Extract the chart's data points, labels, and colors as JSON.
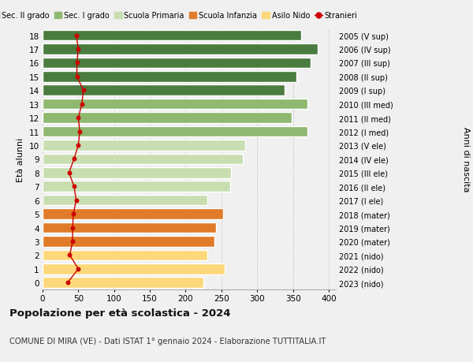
{
  "ages": [
    0,
    1,
    2,
    3,
    4,
    5,
    6,
    7,
    8,
    9,
    10,
    11,
    12,
    13,
    14,
    15,
    16,
    17,
    18
  ],
  "bar_values": [
    225,
    255,
    230,
    240,
    242,
    252,
    230,
    262,
    263,
    280,
    283,
    370,
    348,
    370,
    338,
    355,
    375,
    385,
    362
  ],
  "bar_colors": [
    "#fdd87a",
    "#fdd87a",
    "#fdd87a",
    "#e07b2a",
    "#e07b2a",
    "#e07b2a",
    "#c8deb0",
    "#c8deb0",
    "#c8deb0",
    "#c8deb0",
    "#c8deb0",
    "#8fb870",
    "#8fb870",
    "#8fb870",
    "#4a7c3f",
    "#4a7c3f",
    "#4a7c3f",
    "#4a7c3f",
    "#4a7c3f"
  ],
  "stranieri_values": [
    35,
    50,
    38,
    42,
    42,
    43,
    47,
    44,
    37,
    44,
    50,
    52,
    50,
    55,
    57,
    48,
    48,
    50,
    47
  ],
  "right_labels": [
    "2023 (nido)",
    "2022 (nido)",
    "2021 (nido)",
    "2020 (mater)",
    "2019 (mater)",
    "2018 (mater)",
    "2017 (I ele)",
    "2016 (II ele)",
    "2015 (III ele)",
    "2014 (IV ele)",
    "2013 (V ele)",
    "2012 (I med)",
    "2011 (II med)",
    "2010 (III med)",
    "2009 (I sup)",
    "2008 (II sup)",
    "2007 (III sup)",
    "2006 (IV sup)",
    "2005 (V sup)"
  ],
  "legend_labels": [
    "Sec. II grado",
    "Sec. I grado",
    "Scuola Primaria",
    "Scuola Infanzia",
    "Asilo Nido",
    "Stranieri"
  ],
  "legend_colors": [
    "#4a7c3f",
    "#8fb870",
    "#c8deb0",
    "#e07b2a",
    "#fdd87a",
    "#cc0000"
  ],
  "ylabel_left": "Età alunni",
  "ylabel_right": "Anni di nascita",
  "title": "Popolazione per età scolastica - 2024",
  "subtitle": "COMUNE DI MIRA (VE) - Dati ISTAT 1° gennaio 2024 - Elaborazione TUTTITALIA.IT",
  "xlim": [
    0,
    410
  ],
  "xticks": [
    0,
    50,
    100,
    150,
    200,
    250,
    300,
    350,
    400
  ],
  "background_color": "#f0f0f0",
  "stranieri_color": "#cc0000",
  "grid_color": "#cccccc"
}
